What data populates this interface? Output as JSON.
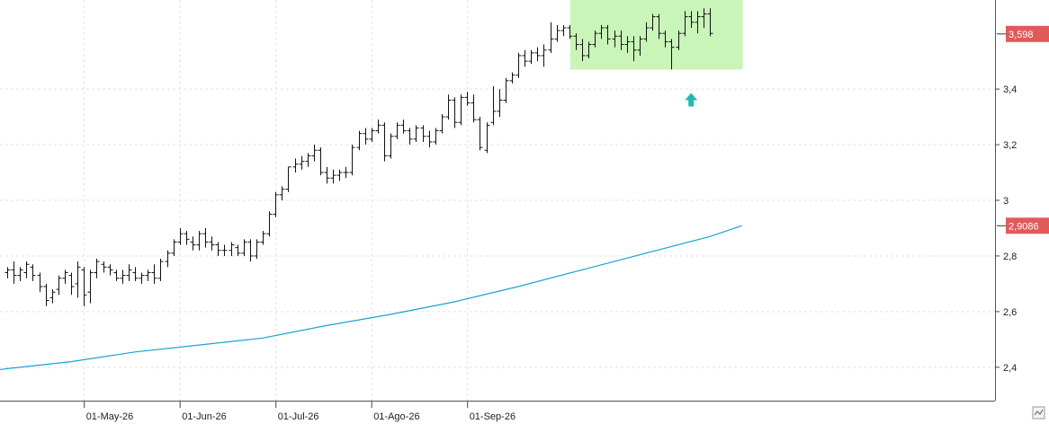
{
  "chart_data": {
    "type": "ohlc",
    "y_axis": {
      "ticks": [
        "2,4",
        "2,6",
        "2,8",
        "3",
        "3,2",
        "3,4"
      ],
      "tick_values": [
        2.4,
        2.6,
        2.8,
        3.0,
        3.2,
        3.4
      ],
      "ylim": [
        2.28,
        3.72
      ],
      "side": "right",
      "grid": true
    },
    "x_axis": {
      "ticks": [
        "01-May-26",
        "01-Jun-26",
        "01-Jul-26",
        "01-Ago-26",
        "01-Sep-26"
      ],
      "tick_index": [
        12,
        27,
        42,
        57,
        72
      ],
      "grid": true
    },
    "price_series": [
      [
        2.74,
        2.76,
        2.72,
        2.75
      ],
      [
        2.75,
        2.78,
        2.7,
        2.73
      ],
      [
        2.73,
        2.76,
        2.71,
        2.75
      ],
      [
        2.74,
        2.78,
        2.72,
        2.77
      ],
      [
        2.76,
        2.77,
        2.71,
        2.73
      ],
      [
        2.73,
        2.74,
        2.67,
        2.69
      ],
      [
        2.69,
        2.7,
        2.62,
        2.64
      ],
      [
        2.65,
        2.68,
        2.63,
        2.67
      ],
      [
        2.68,
        2.73,
        2.66,
        2.72
      ],
      [
        2.72,
        2.75,
        2.7,
        2.74
      ],
      [
        2.73,
        2.74,
        2.66,
        2.69
      ],
      [
        2.7,
        2.78,
        2.65,
        2.76
      ],
      [
        2.75,
        2.76,
        2.62,
        2.66
      ],
      [
        2.67,
        2.75,
        2.63,
        2.74
      ],
      [
        2.74,
        2.79,
        2.72,
        2.78
      ],
      [
        2.77,
        2.78,
        2.74,
        2.76
      ],
      [
        2.76,
        2.77,
        2.73,
        2.75
      ],
      [
        2.74,
        2.75,
        2.71,
        2.72
      ],
      [
        2.72,
        2.75,
        2.7,
        2.73
      ],
      [
        2.73,
        2.77,
        2.71,
        2.75
      ],
      [
        2.74,
        2.76,
        2.71,
        2.72
      ],
      [
        2.72,
        2.74,
        2.7,
        2.73
      ],
      [
        2.73,
        2.75,
        2.71,
        2.74
      ],
      [
        2.74,
        2.77,
        2.7,
        2.72
      ],
      [
        2.72,
        2.79,
        2.71,
        2.78
      ],
      [
        2.78,
        2.82,
        2.76,
        2.81
      ],
      [
        2.81,
        2.86,
        2.8,
        2.85
      ],
      [
        2.85,
        2.9,
        2.84,
        2.88
      ],
      [
        2.88,
        2.89,
        2.84,
        2.86
      ],
      [
        2.85,
        2.87,
        2.82,
        2.84
      ],
      [
        2.84,
        2.89,
        2.82,
        2.88
      ],
      [
        2.88,
        2.9,
        2.83,
        2.85
      ],
      [
        2.85,
        2.87,
        2.82,
        2.84
      ],
      [
        2.84,
        2.85,
        2.8,
        2.82
      ],
      [
        2.82,
        2.84,
        2.8,
        2.82
      ],
      [
        2.82,
        2.85,
        2.8,
        2.84
      ],
      [
        2.83,
        2.84,
        2.8,
        2.81
      ],
      [
        2.81,
        2.86,
        2.8,
        2.85
      ],
      [
        2.85,
        2.86,
        2.78,
        2.8
      ],
      [
        2.8,
        2.86,
        2.79,
        2.85
      ],
      [
        2.85,
        2.89,
        2.84,
        2.88
      ],
      [
        2.88,
        2.96,
        2.87,
        2.95
      ],
      [
        2.95,
        3.03,
        2.94,
        3.02
      ],
      [
        3.02,
        3.05,
        3.0,
        3.04
      ],
      [
        3.04,
        3.12,
        3.03,
        3.12
      ],
      [
        3.12,
        3.15,
        3.1,
        3.13
      ],
      [
        3.13,
        3.16,
        3.11,
        3.14
      ],
      [
        3.14,
        3.17,
        3.12,
        3.16
      ],
      [
        3.16,
        3.2,
        3.14,
        3.18
      ],
      [
        3.18,
        3.19,
        3.09,
        3.1
      ],
      [
        3.1,
        3.12,
        3.06,
        3.08
      ],
      [
        3.08,
        3.11,
        3.06,
        3.09
      ],
      [
        3.09,
        3.11,
        3.07,
        3.1
      ],
      [
        3.1,
        3.12,
        3.08,
        3.1
      ],
      [
        3.1,
        3.2,
        3.09,
        3.19
      ],
      [
        3.19,
        3.25,
        3.18,
        3.24
      ],
      [
        3.24,
        3.26,
        3.2,
        3.22
      ],
      [
        3.22,
        3.26,
        3.21,
        3.25
      ],
      [
        3.25,
        3.29,
        3.24,
        3.27
      ],
      [
        3.27,
        3.28,
        3.14,
        3.16
      ],
      [
        3.16,
        3.24,
        3.15,
        3.23
      ],
      [
        3.23,
        3.28,
        3.22,
        3.27
      ],
      [
        3.27,
        3.29,
        3.24,
        3.25
      ],
      [
        3.25,
        3.26,
        3.2,
        3.22
      ],
      [
        3.22,
        3.27,
        3.21,
        3.26
      ],
      [
        3.26,
        3.27,
        3.21,
        3.23
      ],
      [
        3.23,
        3.25,
        3.19,
        3.21
      ],
      [
        3.21,
        3.26,
        3.2,
        3.25
      ],
      [
        3.25,
        3.31,
        3.24,
        3.3
      ],
      [
        3.3,
        3.38,
        3.29,
        3.36
      ],
      [
        3.36,
        3.37,
        3.26,
        3.28
      ],
      [
        3.28,
        3.38,
        3.27,
        3.37
      ],
      [
        3.37,
        3.39,
        3.34,
        3.35
      ],
      [
        3.35,
        3.38,
        3.28,
        3.29
      ],
      [
        3.29,
        3.3,
        3.18,
        3.19
      ],
      [
        3.18,
        3.28,
        3.17,
        3.27
      ],
      [
        3.28,
        3.41,
        3.27,
        3.32
      ],
      [
        3.32,
        3.4,
        3.3,
        3.36
      ],
      [
        3.36,
        3.44,
        3.35,
        3.43
      ],
      [
        3.43,
        3.46,
        3.42,
        3.45
      ],
      [
        3.45,
        3.53,
        3.44,
        3.52
      ],
      [
        3.52,
        3.54,
        3.48,
        3.5
      ],
      [
        3.5,
        3.54,
        3.49,
        3.53
      ],
      [
        3.53,
        3.55,
        3.5,
        3.52
      ],
      [
        3.52,
        3.56,
        3.48,
        3.54
      ],
      [
        3.54,
        3.64,
        3.53,
        3.58
      ],
      [
        3.58,
        3.63,
        3.57,
        3.61
      ],
      [
        3.61,
        3.63,
        3.59,
        3.62
      ],
      [
        3.62,
        3.63,
        3.58,
        3.59
      ],
      [
        3.59,
        3.6,
        3.54,
        3.56
      ],
      [
        3.56,
        3.58,
        3.5,
        3.52
      ],
      [
        3.52,
        3.57,
        3.51,
        3.56
      ],
      [
        3.56,
        3.61,
        3.55,
        3.6
      ],
      [
        3.6,
        3.63,
        3.58,
        3.62
      ],
      [
        3.62,
        3.63,
        3.56,
        3.58
      ],
      [
        3.58,
        3.61,
        3.55,
        3.59
      ],
      [
        3.59,
        3.61,
        3.54,
        3.56
      ],
      [
        3.56,
        3.59,
        3.53,
        3.57
      ],
      [
        3.57,
        3.59,
        3.5,
        3.54
      ],
      [
        3.54,
        3.59,
        3.52,
        3.58
      ],
      [
        3.58,
        3.64,
        3.57,
        3.62
      ],
      [
        3.62,
        3.67,
        3.61,
        3.66
      ],
      [
        3.66,
        3.67,
        3.58,
        3.6
      ],
      [
        3.6,
        3.61,
        3.55,
        3.57
      ],
      [
        3.57,
        3.58,
        3.47,
        3.55
      ],
      [
        3.55,
        3.61,
        3.54,
        3.6
      ],
      [
        3.6,
        3.68,
        3.59,
        3.66
      ],
      [
        3.66,
        3.68,
        3.62,
        3.64
      ],
      [
        3.64,
        3.68,
        3.6,
        3.66
      ],
      [
        3.66,
        3.69,
        3.62,
        3.67
      ],
      [
        3.67,
        3.69,
        3.59,
        3.6
      ]
    ],
    "moving_average": {
      "color": "#1aa3d0",
      "values_at": [
        [
          -5,
          2.38
        ],
        [
          0,
          2.395
        ],
        [
          10,
          2.42
        ],
        [
          20,
          2.455
        ],
        [
          30,
          2.48
        ],
        [
          40,
          2.505
        ],
        [
          50,
          2.55
        ],
        [
          60,
          2.59
        ],
        [
          70,
          2.635
        ],
        [
          80,
          2.69
        ],
        [
          90,
          2.75
        ],
        [
          100,
          2.81
        ],
        [
          110,
          2.87
        ],
        [
          115,
          2.9086
        ]
      ]
    },
    "price_tags": [
      {
        "label": "3,598",
        "value": 3.598,
        "color": "#e05a5a"
      },
      {
        "label": "2,9086",
        "value": 2.9086,
        "color": "#e05a5a"
      }
    ],
    "highlight_zone": {
      "from_index": 89,
      "to_index": 116,
      "y_from": 3.47,
      "y_to": 3.72,
      "color": "#c9f5b8"
    },
    "arrow": {
      "index": 107,
      "value": 3.36,
      "color": "#22b8b0",
      "direction": "up"
    }
  }
}
